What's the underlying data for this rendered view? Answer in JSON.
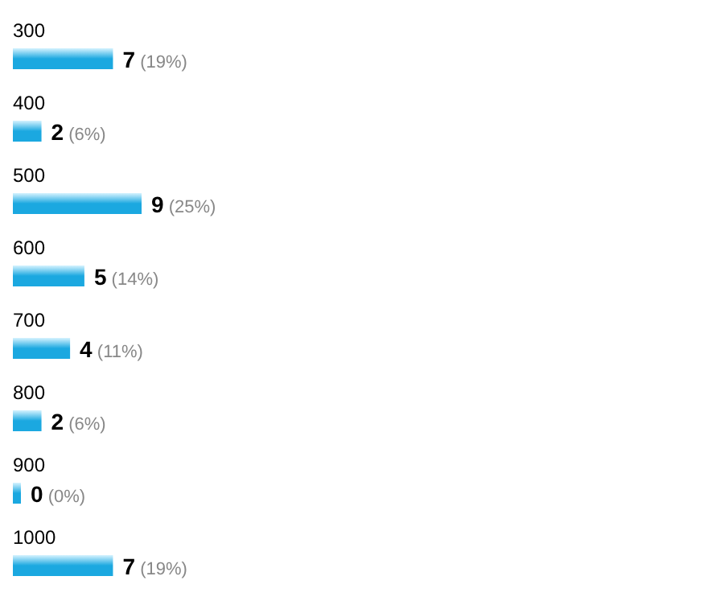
{
  "chart_data": {
    "type": "bar",
    "orientation": "horizontal",
    "categories": [
      "300",
      "400",
      "500",
      "600",
      "700",
      "800",
      "900",
      "1000"
    ],
    "values": [
      7,
      2,
      9,
      5,
      4,
      2,
      0,
      7
    ],
    "value_labels": [
      "7 (19%)",
      "2 (6%)",
      "9 (25%)",
      "5 (14%)",
      "4 (11%)",
      "2 (6%)",
      "0 (0%)",
      "7 (19%)"
    ],
    "color": "#1ba8e0"
  }
}
